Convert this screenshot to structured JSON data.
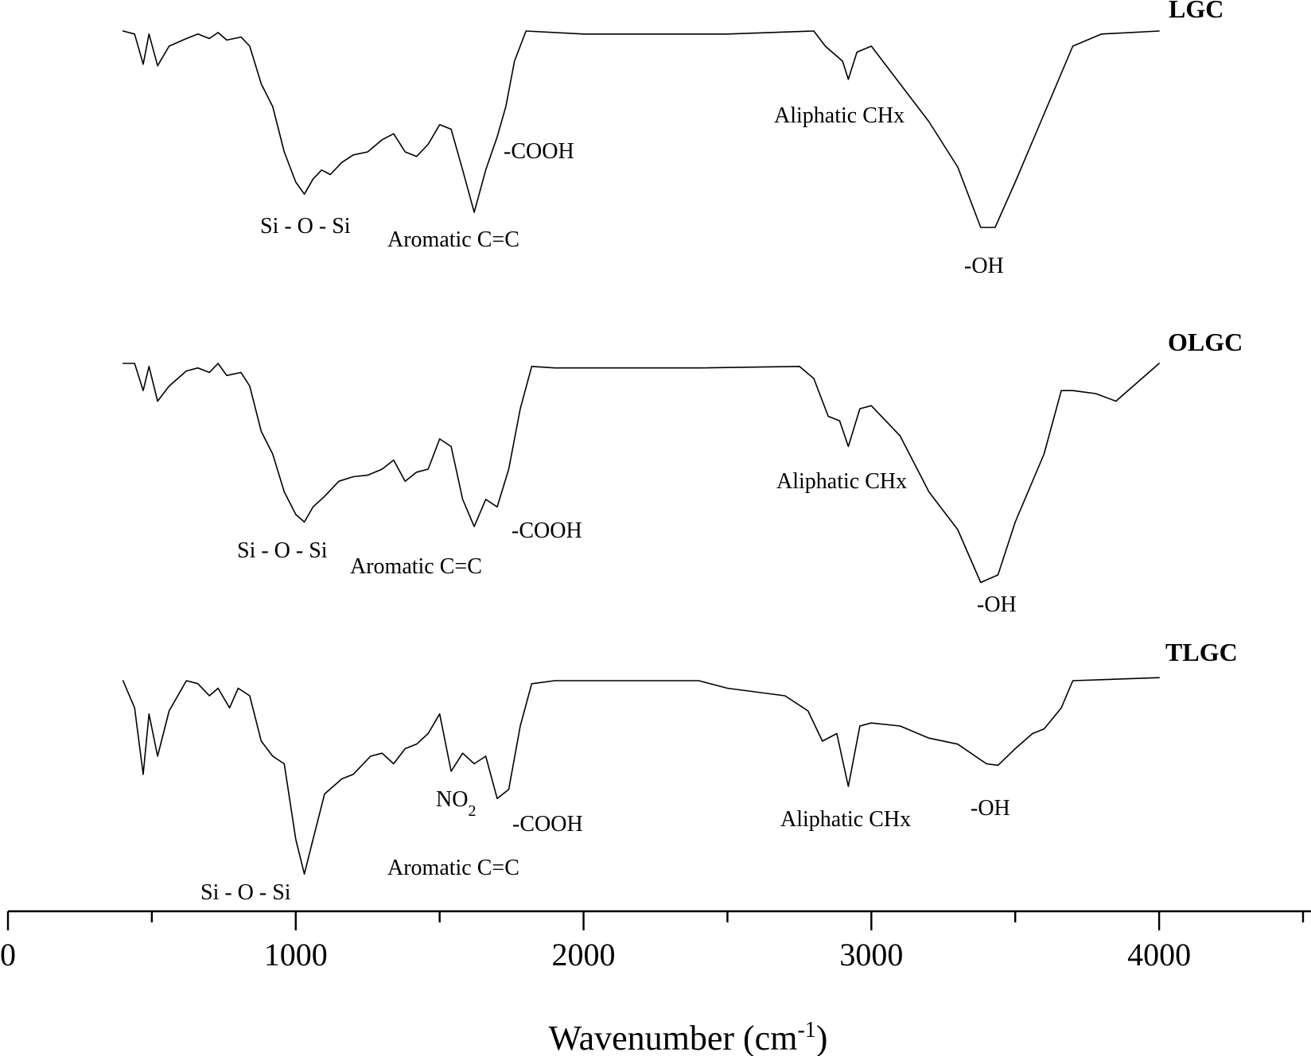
{
  "chart_data": {
    "type": "line",
    "xlabel": "Wavenumber (cm",
    "xlabel_sup": "-1",
    "xlim": [
      0,
      4500
    ],
    "x_ticks": [
      0,
      1000,
      2000,
      3000,
      4000
    ],
    "x_tick_labels": [
      "0",
      "1000",
      "2000",
      "3000",
      "4000"
    ],
    "x_minor_ticks": [
      500,
      1500,
      2500,
      3500,
      4500
    ],
    "y_axis_visible": false,
    "grid": false,
    "series": [
      {
        "name": "LGC",
        "baseline_y": 0,
        "points": [
          [
            400,
            0.0
          ],
          [
            440,
            0.02
          ],
          [
            470,
            0.22
          ],
          [
            490,
            0.02
          ],
          [
            520,
            0.23
          ],
          [
            560,
            0.1
          ],
          [
            620,
            0.05
          ],
          [
            660,
            0.02
          ],
          [
            700,
            0.05
          ],
          [
            730,
            0.01
          ],
          [
            760,
            0.06
          ],
          [
            810,
            0.04
          ],
          [
            840,
            0.1
          ],
          [
            880,
            0.35
          ],
          [
            920,
            0.5
          ],
          [
            960,
            0.8
          ],
          [
            1000,
            1.0
          ],
          [
            1030,
            1.08
          ],
          [
            1060,
            0.98
          ],
          [
            1090,
            0.92
          ],
          [
            1120,
            0.95
          ],
          [
            1160,
            0.87
          ],
          [
            1200,
            0.82
          ],
          [
            1250,
            0.8
          ],
          [
            1300,
            0.72
          ],
          [
            1340,
            0.68
          ],
          [
            1380,
            0.8
          ],
          [
            1420,
            0.83
          ],
          [
            1460,
            0.75
          ],
          [
            1500,
            0.62
          ],
          [
            1540,
            0.65
          ],
          [
            1580,
            0.92
          ],
          [
            1620,
            1.2
          ],
          [
            1660,
            0.92
          ],
          [
            1700,
            0.7
          ],
          [
            1730,
            0.5
          ],
          [
            1760,
            0.2
          ],
          [
            1800,
            0.0
          ],
          [
            2000,
            0.02
          ],
          [
            2500,
            0.02
          ],
          [
            2800,
            0.0
          ],
          [
            2840,
            0.1
          ],
          [
            2870,
            0.15
          ],
          [
            2900,
            0.2
          ],
          [
            2920,
            0.32
          ],
          [
            2950,
            0.14
          ],
          [
            3000,
            0.1
          ],
          [
            3100,
            0.35
          ],
          [
            3200,
            0.6
          ],
          [
            3300,
            0.9
          ],
          [
            3380,
            1.3
          ],
          [
            3430,
            1.3
          ],
          [
            3500,
            1.0
          ],
          [
            3600,
            0.55
          ],
          [
            3700,
            0.1
          ],
          [
            3800,
            0.02
          ],
          [
            4000,
            0.0
          ]
        ]
      },
      {
        "name": "OLGC",
        "baseline_y": 0,
        "points": [
          [
            400,
            0.0
          ],
          [
            440,
            0.0
          ],
          [
            470,
            0.18
          ],
          [
            490,
            0.02
          ],
          [
            520,
            0.25
          ],
          [
            560,
            0.15
          ],
          [
            620,
            0.05
          ],
          [
            660,
            0.03
          ],
          [
            700,
            0.06
          ],
          [
            730,
            0.0
          ],
          [
            760,
            0.08
          ],
          [
            810,
            0.06
          ],
          [
            840,
            0.15
          ],
          [
            880,
            0.45
          ],
          [
            920,
            0.6
          ],
          [
            960,
            0.85
          ],
          [
            1000,
            1.0
          ],
          [
            1030,
            1.05
          ],
          [
            1060,
            0.95
          ],
          [
            1100,
            0.88
          ],
          [
            1150,
            0.78
          ],
          [
            1200,
            0.75
          ],
          [
            1250,
            0.74
          ],
          [
            1300,
            0.7
          ],
          [
            1340,
            0.64
          ],
          [
            1380,
            0.78
          ],
          [
            1420,
            0.72
          ],
          [
            1460,
            0.7
          ],
          [
            1500,
            0.5
          ],
          [
            1540,
            0.55
          ],
          [
            1580,
            0.9
          ],
          [
            1620,
            1.08
          ],
          [
            1660,
            0.9
          ],
          [
            1700,
            0.95
          ],
          [
            1740,
            0.7
          ],
          [
            1780,
            0.3
          ],
          [
            1820,
            0.02
          ],
          [
            1900,
            0.03
          ],
          [
            2400,
            0.03
          ],
          [
            2750,
            0.02
          ],
          [
            2800,
            0.1
          ],
          [
            2850,
            0.35
          ],
          [
            2890,
            0.38
          ],
          [
            2920,
            0.55
          ],
          [
            2960,
            0.3
          ],
          [
            3000,
            0.28
          ],
          [
            3100,
            0.48
          ],
          [
            3200,
            0.85
          ],
          [
            3300,
            1.1
          ],
          [
            3380,
            1.45
          ],
          [
            3440,
            1.4
          ],
          [
            3500,
            1.05
          ],
          [
            3600,
            0.6
          ],
          [
            3660,
            0.18
          ],
          [
            3700,
            0.18
          ],
          [
            3780,
            0.2
          ],
          [
            3850,
            0.25
          ],
          [
            4000,
            0.0
          ]
        ]
      },
      {
        "name": "TLGC",
        "baseline_y": 0,
        "points": [
          [
            400,
            0.0
          ],
          [
            440,
            0.18
          ],
          [
            470,
            0.62
          ],
          [
            490,
            0.22
          ],
          [
            520,
            0.5
          ],
          [
            560,
            0.2
          ],
          [
            620,
            0.0
          ],
          [
            660,
            0.02
          ],
          [
            700,
            0.1
          ],
          [
            730,
            0.05
          ],
          [
            770,
            0.18
          ],
          [
            800,
            0.05
          ],
          [
            840,
            0.1
          ],
          [
            880,
            0.4
          ],
          [
            920,
            0.5
          ],
          [
            960,
            0.55
          ],
          [
            1000,
            1.05
          ],
          [
            1030,
            1.28
          ],
          [
            1060,
            1.05
          ],
          [
            1100,
            0.75
          ],
          [
            1160,
            0.65
          ],
          [
            1200,
            0.62
          ],
          [
            1260,
            0.5
          ],
          [
            1300,
            0.48
          ],
          [
            1340,
            0.55
          ],
          [
            1380,
            0.45
          ],
          [
            1420,
            0.42
          ],
          [
            1460,
            0.35
          ],
          [
            1500,
            0.22
          ],
          [
            1540,
            0.6
          ],
          [
            1580,
            0.48
          ],
          [
            1620,
            0.55
          ],
          [
            1660,
            0.5
          ],
          [
            1700,
            0.78
          ],
          [
            1740,
            0.72
          ],
          [
            1780,
            0.3
          ],
          [
            1820,
            0.02
          ],
          [
            1900,
            0.0
          ],
          [
            2400,
            0.0
          ],
          [
            2500,
            0.05
          ],
          [
            2700,
            0.1
          ],
          [
            2780,
            0.2
          ],
          [
            2830,
            0.4
          ],
          [
            2880,
            0.35
          ],
          [
            2920,
            0.7
          ],
          [
            2960,
            0.3
          ],
          [
            3000,
            0.28
          ],
          [
            3100,
            0.3
          ],
          [
            3200,
            0.38
          ],
          [
            3300,
            0.42
          ],
          [
            3400,
            0.55
          ],
          [
            3440,
            0.56
          ],
          [
            3500,
            0.45
          ],
          [
            3560,
            0.35
          ],
          [
            3600,
            0.32
          ],
          [
            3660,
            0.18
          ],
          [
            3700,
            0.0
          ],
          [
            4000,
            -0.02
          ]
        ]
      }
    ],
    "annotations": {
      "LGC": [
        "Si - O - Si",
        "Aromatic C=C",
        "-COOH",
        "Aliphatic CHx",
        "-OH"
      ],
      "OLGC": [
        "Si - O - Si",
        "Aromatic C=C",
        "-COOH",
        "Aliphatic CHx",
        "-OH"
      ],
      "TLGC": [
        "Si - O - Si",
        "NO",
        "2",
        "Aromatic C=C",
        "-COOH",
        "Aliphatic CHx",
        "-OH"
      ]
    }
  }
}
